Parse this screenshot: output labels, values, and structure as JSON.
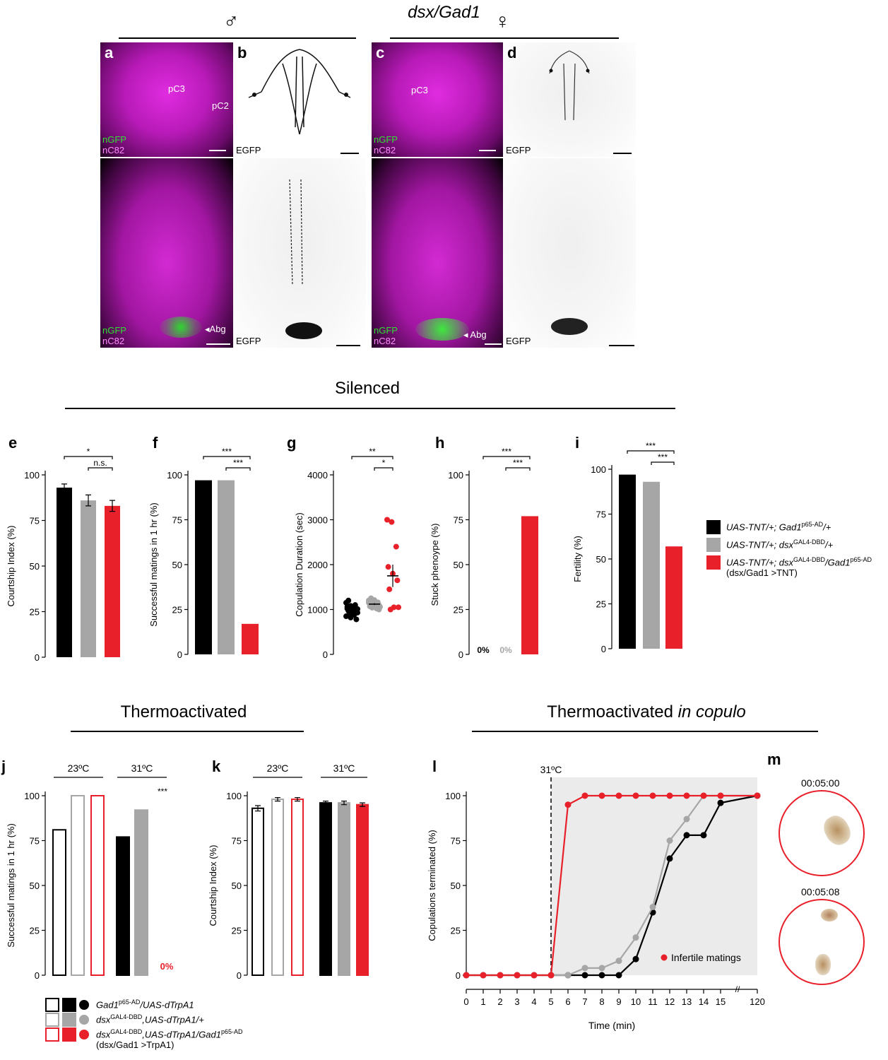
{
  "header": {
    "title": "dsx/Gad1",
    "male_symbol": "♂",
    "female_symbol": "♀"
  },
  "imaging": {
    "panels": [
      "a",
      "b",
      "c",
      "d"
    ],
    "channel_green": "nGFP",
    "channel_magenta": "nC82",
    "channel_egfp": "EGFP",
    "label_pc3": "pC3",
    "label_pc2": "pC2",
    "label_abg": "Abg"
  },
  "sections": {
    "silenced": "Silenced",
    "thermo": "Thermoactivated",
    "thermo_copulo_a": "Thermoactivated ",
    "thermo_copulo_b": "in copulo"
  },
  "colors": {
    "black": "#000000",
    "gray": "#a6a6a6",
    "red": "#e8202a"
  },
  "legend_silenced": [
    {
      "text_a": "UAS-TNT/+; Gad1",
      "sup": "p65-AD",
      "text_b": "/+",
      "color": "#000000"
    },
    {
      "text_a": "UAS-TNT/+; dsx",
      "sup": "GAL4-DBD",
      "text_b": "/+",
      "color": "#a6a6a6"
    },
    {
      "text_a": "UAS-TNT/+; dsx",
      "sup": "GAL4-DBD",
      "text_b": "/Gad1",
      "sup2": "p65-AD",
      "line2": "(dsx/Gad1 >TNT)",
      "color": "#e8202a"
    }
  ],
  "legend_thermo": [
    {
      "text_a": "Gad1",
      "sup": "p65-AD",
      "text_b": "/UAS-dTrpA1",
      "color": "#000000"
    },
    {
      "text_a": "dsx",
      "sup": "GAL4-DBD",
      "text_b": ",UAS-dTrpA1/+",
      "color": "#a6a6a6"
    },
    {
      "text_a": "dsx",
      "sup": "GAL4-DBD",
      "text_b": ",UAS-dTrpA1/Gad1",
      "sup2": "p65-AD",
      "line2": "(dsx/Gad1 >TrpA1)",
      "color": "#e8202a"
    }
  ],
  "chart_data": [
    {
      "panel": "e",
      "type": "bar",
      "ylabel": "Courtship Index (%)",
      "ylim": [
        0,
        100
      ],
      "yticks": [
        0,
        25,
        50,
        75,
        100
      ],
      "values": [
        93,
        86,
        83
      ],
      "errors": [
        2,
        3,
        3
      ],
      "colors": [
        "#000000",
        "#a6a6a6",
        "#e8202a"
      ],
      "sig": [
        {
          "text": "*",
          "pair": [
            0,
            2
          ]
        },
        {
          "text": "n.s.",
          "pair": [
            1,
            2
          ]
        }
      ]
    },
    {
      "panel": "f",
      "type": "bar",
      "ylabel": "Successful matings in 1 hr (%)",
      "ylim": [
        0,
        100
      ],
      "yticks": [
        0,
        25,
        50,
        75,
        100
      ],
      "values": [
        97,
        97,
        17
      ],
      "colors": [
        "#000000",
        "#a6a6a6",
        "#e8202a"
      ],
      "sig": [
        {
          "text": "***",
          "pair": [
            0,
            2
          ]
        },
        {
          "text": "***",
          "pair": [
            1,
            2
          ]
        }
      ]
    },
    {
      "panel": "g",
      "type": "scatter",
      "ylabel": "Copulation Duration (sec)",
      "ylim": [
        0,
        4000
      ],
      "yticks": [
        0,
        1000,
        2000,
        3000,
        4000
      ],
      "groups": [
        {
          "color": "#000000",
          "mean": 1000,
          "sem": 40,
          "points": [
            1150,
            1080,
            1050,
            1020,
            1000,
            990,
            970,
            950,
            930,
            900,
            880,
            850,
            820,
            1100,
            1060,
            940,
            780,
            1200,
            960,
            1010
          ]
        },
        {
          "color": "#a6a6a6",
          "mean": 1120,
          "sem": 20,
          "points": [
            1200,
            1180,
            1160,
            1140,
            1120,
            1100,
            1090,
            1080,
            1060,
            1040,
            1020,
            1150,
            1130,
            1110,
            1070,
            1210,
            1000,
            1250
          ]
        },
        {
          "color": "#e8202a",
          "mean": 1750,
          "sem": 250,
          "points": [
            3000,
            2950,
            2400,
            1950,
            1800,
            1650,
            1450,
            1050,
            1050,
            1000
          ]
        }
      ],
      "sig": [
        {
          "text": "**",
          "pair": [
            0,
            2
          ]
        },
        {
          "text": "*",
          "pair": [
            1,
            2
          ]
        }
      ]
    },
    {
      "panel": "h",
      "type": "bar",
      "ylabel": "Stuck phenoype (%)",
      "ylim": [
        0,
        100
      ],
      "yticks": [
        0,
        25,
        50,
        75,
        100
      ],
      "values": [
        0,
        0,
        77
      ],
      "colors": [
        "#000000",
        "#a6a6a6",
        "#e8202a"
      ],
      "zero_labels": [
        "0%",
        "0%",
        ""
      ],
      "sig": [
        {
          "text": "***",
          "pair": [
            0,
            2
          ]
        },
        {
          "text": "***",
          "pair": [
            1,
            2
          ]
        }
      ]
    },
    {
      "panel": "i",
      "type": "bar",
      "ylabel": "Fertility (%)",
      "ylim": [
        0,
        100
      ],
      "yticks": [
        0,
        25,
        50,
        75,
        100
      ],
      "values": [
        97,
        93,
        57
      ],
      "colors": [
        "#000000",
        "#a6a6a6",
        "#e8202a"
      ],
      "sig": [
        {
          "text": "***",
          "pair": [
            0,
            2
          ]
        },
        {
          "text": "***",
          "pair": [
            1,
            2
          ]
        }
      ]
    },
    {
      "panel": "j",
      "type": "bar",
      "ylabel": "Successful matings in 1 hr (%)",
      "ylim": [
        0,
        100
      ],
      "yticks": [
        0,
        25,
        50,
        75,
        100
      ],
      "groups": [
        "23ºC",
        "31ºC"
      ],
      "values": [
        81,
        100,
        100,
        77,
        92,
        0
      ],
      "filled": [
        false,
        false,
        false,
        true,
        true,
        true
      ],
      "colors": [
        "#000000",
        "#a6a6a6",
        "#e8202a",
        "#000000",
        "#a6a6a6",
        "#e8202a"
      ],
      "zero_label": "0%",
      "sig_text": "***"
    },
    {
      "panel": "k",
      "type": "bar",
      "ylabel": "Courtship Index (%)",
      "ylim": [
        0,
        100
      ],
      "yticks": [
        0,
        25,
        50,
        75,
        100
      ],
      "groups": [
        "23ºC",
        "31ºC"
      ],
      "values": [
        93,
        98,
        98,
        96,
        96,
        95
      ],
      "errors": [
        1.5,
        1,
        1,
        1,
        1,
        1
      ],
      "filled": [
        false,
        false,
        false,
        true,
        true,
        true
      ],
      "colors": [
        "#000000",
        "#a6a6a6",
        "#e8202a",
        "#000000",
        "#a6a6a6",
        "#e8202a"
      ]
    },
    {
      "panel": "l",
      "type": "line",
      "ylabel": "Copulations terminated (%)",
      "xlabel": "Time (min)",
      "ylim": [
        0,
        100
      ],
      "yticks": [
        0,
        25,
        50,
        75,
        100
      ],
      "x": [
        "0",
        "1",
        "2",
        "3",
        "4",
        "5",
        "6",
        "7",
        "8",
        "9",
        "10",
        "11",
        "12",
        "13",
        "14",
        "15",
        "120"
      ],
      "temp_label": "31ºC",
      "temp_at": "5",
      "annotation": "Infertile matings",
      "series": [
        {
          "color": "#000000",
          "values": [
            0,
            0,
            0,
            0,
            0,
            0,
            0,
            0,
            0,
            0,
            9,
            35,
            65,
            78,
            78,
            96,
            100
          ]
        },
        {
          "color": "#a6a6a6",
          "values": [
            0,
            0,
            0,
            0,
            0,
            0,
            0,
            4,
            4,
            8,
            21,
            38,
            75,
            87,
            100,
            100,
            100
          ]
        },
        {
          "color": "#e8202a",
          "values": [
            0,
            0,
            0,
            0,
            0,
            0,
            95,
            100,
            100,
            100,
            100,
            100,
            100,
            100,
            100,
            100,
            100
          ]
        }
      ]
    }
  ],
  "panel_m": {
    "time1": "00:05:00",
    "time2": "00:05:08"
  }
}
